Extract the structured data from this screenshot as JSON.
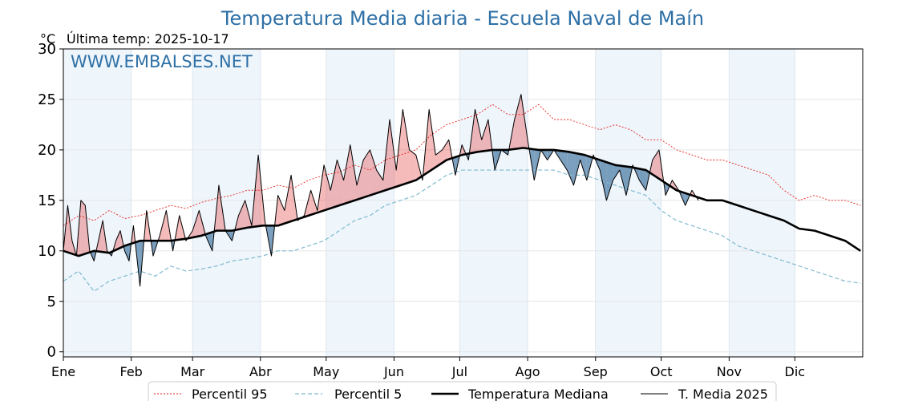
{
  "chart_data": {
    "type": "line",
    "title": "Temperatura Media diaria - Escuela Naval de Maín",
    "unit_label": "°C",
    "last_temp_label": "Última temp: 2025-10-17",
    "watermark": "WWW.EMBALSES.NET",
    "ylim": [
      -0.5,
      30
    ],
    "yticks": [
      0,
      5,
      10,
      15,
      20,
      25,
      30
    ],
    "xlim": [
      0,
      365
    ],
    "x_unit": "day of year",
    "months": [
      "Ene",
      "Feb",
      "Mar",
      "Abr",
      "May",
      "Jun",
      "Jul",
      "Ago",
      "Sep",
      "Oct",
      "Nov",
      "Dic"
    ],
    "grid": true,
    "legend_position": "bottom",
    "colors": {
      "p95": "#e8221c",
      "p5": "#7fb9d0",
      "median": "#000000",
      "current": "#000000",
      "above_fill": "#e85a5a",
      "below_fill": "#4f7fa8",
      "title": "#2e70a6",
      "month_shade": "#eef5fb"
    },
    "legend": [
      {
        "key": "p95",
        "label": "Percentil 95"
      },
      {
        "key": "p5",
        "label": "Percentil 5"
      },
      {
        "key": "median",
        "label": "Temperatura Mediana"
      },
      {
        "key": "current",
        "label": "T. Media 2025"
      }
    ],
    "series": {
      "p95": {
        "x": [
          0,
          7,
          14,
          21,
          28,
          35,
          42,
          49,
          56,
          63,
          70,
          77,
          84,
          91,
          98,
          105,
          112,
          119,
          126,
          133,
          140,
          147,
          154,
          161,
          168,
          175,
          182,
          189,
          196,
          203,
          210,
          217,
          224,
          231,
          238,
          245,
          252,
          259,
          266,
          273,
          280,
          287,
          294,
          301,
          308,
          315,
          322,
          329,
          336,
          343,
          350,
          357,
          364
        ],
        "y": [
          12.5,
          13.5,
          13,
          14,
          13.2,
          13.5,
          14,
          14.5,
          14.2,
          14.8,
          15.2,
          15.5,
          16,
          16,
          16.5,
          16.2,
          17,
          17.5,
          17.8,
          18.5,
          18,
          19,
          19.5,
          20,
          21.5,
          22.5,
          23,
          23.5,
          24.5,
          23.5,
          23.5,
          24.5,
          23,
          23,
          22.5,
          22,
          22.5,
          22,
          21,
          21,
          20,
          19.5,
          19,
          19,
          18.5,
          18,
          17.5,
          16,
          15,
          15.5,
          15,
          15,
          14.5
        ]
      },
      "p5": {
        "x": [
          0,
          7,
          14,
          21,
          28,
          35,
          42,
          49,
          56,
          63,
          70,
          77,
          84,
          91,
          98,
          105,
          112,
          119,
          126,
          133,
          140,
          147,
          154,
          161,
          168,
          175,
          182,
          189,
          196,
          203,
          210,
          217,
          224,
          231,
          238,
          245,
          252,
          259,
          266,
          273,
          280,
          287,
          294,
          301,
          308,
          315,
          322,
          329,
          336,
          343,
          350,
          357,
          364
        ],
        "y": [
          7,
          8,
          6,
          7,
          7.5,
          8,
          7.5,
          8.5,
          8,
          8.2,
          8.5,
          9,
          9.2,
          9.5,
          10,
          10,
          10.5,
          11,
          12,
          13,
          13.5,
          14.5,
          15,
          15.5,
          16.5,
          17.5,
          18,
          18,
          18,
          18,
          18,
          18,
          18,
          17.5,
          17.5,
          17,
          16.5,
          16,
          15.5,
          14,
          13,
          12.5,
          12,
          11.5,
          10.5,
          10,
          9.5,
          9,
          8.5,
          8,
          7.5,
          7,
          6.8
        ]
      },
      "median": {
        "x": [
          0,
          7,
          14,
          21,
          28,
          35,
          42,
          49,
          56,
          63,
          70,
          77,
          84,
          91,
          98,
          105,
          112,
          119,
          126,
          133,
          140,
          147,
          154,
          161,
          168,
          175,
          182,
          189,
          196,
          203,
          210,
          217,
          224,
          231,
          238,
          245,
          252,
          259,
          266,
          273,
          280,
          287,
          294,
          301,
          308,
          315,
          322,
          329,
          336,
          343,
          350,
          357,
          364
        ],
        "y": [
          10,
          9.5,
          10,
          9.8,
          10.5,
          11,
          11,
          11,
          11.2,
          11.5,
          12,
          12,
          12.3,
          12.5,
          12.5,
          13,
          13.5,
          14,
          14.5,
          15,
          15.5,
          16,
          16.5,
          17,
          18,
          19,
          19.5,
          19.8,
          20,
          20,
          20.2,
          20,
          20,
          19.8,
          19.5,
          19,
          18.5,
          18.3,
          18,
          17,
          16,
          15.5,
          15,
          15,
          14.5,
          14,
          13.5,
          13,
          12.2,
          12,
          11.5,
          11,
          10
        ]
      },
      "current": {
        "x": [
          0,
          2,
          4,
          6,
          8,
          10,
          12,
          14,
          16,
          18,
          20,
          22,
          24,
          26,
          28,
          30,
          32,
          35,
          38,
          41,
          44,
          47,
          50,
          53,
          56,
          59,
          62,
          65,
          68,
          71,
          74,
          77,
          80,
          83,
          86,
          89,
          92,
          95,
          98,
          101,
          104,
          107,
          110,
          113,
          116,
          119,
          122,
          125,
          128,
          131,
          134,
          137,
          140,
          143,
          146,
          149,
          152,
          155,
          158,
          161,
          164,
          167,
          170,
          173,
          176,
          179,
          182,
          185,
          188,
          191,
          194,
          197,
          200,
          203,
          206,
          209,
          212,
          215,
          218,
          221,
          224,
          227,
          230,
          233,
          236,
          239,
          242,
          245,
          248,
          251,
          254,
          257,
          260,
          263,
          266,
          269,
          272,
          275,
          278,
          281,
          284,
          287,
          290
        ],
        "y": [
          10,
          14.5,
          11,
          9.5,
          15,
          14.5,
          10,
          9,
          11,
          13,
          10,
          9.5,
          11,
          12,
          10,
          9,
          12.5,
          6.5,
          14,
          9.5,
          11.5,
          14,
          10,
          13.5,
          11,
          12,
          14,
          11.5,
          10,
          16.5,
          12,
          11,
          13.5,
          15,
          12.5,
          19.5,
          13,
          9.5,
          15.5,
          14,
          17.5,
          13,
          13.5,
          16,
          14,
          18.5,
          16,
          19,
          17,
          20.5,
          16.5,
          19,
          20,
          18,
          17,
          23,
          18,
          24,
          20,
          19.5,
          17,
          24,
          19.5,
          20,
          21,
          17.5,
          20.5,
          19,
          24,
          21,
          23,
          18,
          20,
          19.5,
          23,
          25.5,
          21,
          17,
          20,
          19,
          20,
          19,
          18,
          16.5,
          19,
          17,
          19.5,
          18,
          15,
          17,
          18,
          15.5,
          18.5,
          17,
          16,
          19,
          20,
          15.5,
          17,
          16,
          14.5,
          16,
          15
        ]
      }
    }
  },
  "bottom_note": ""
}
